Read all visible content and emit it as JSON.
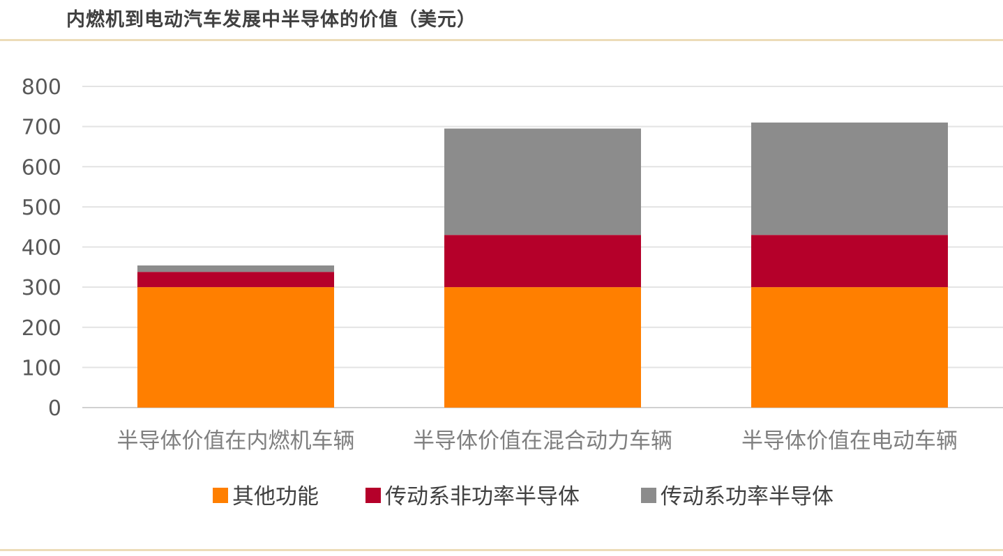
{
  "title": "内燃机到电动汽车发展中半导体的价值（美元）",
  "chart_data": {
    "type": "bar",
    "stacked": true,
    "categories": [
      "半导体价值在内燃机车辆",
      "半导体价值在混合动力车辆",
      "半导体价值在电动车辆"
    ],
    "series": [
      {
        "name": "其他功能",
        "color": "#ff7f00",
        "values": [
          300,
          300,
          300
        ]
      },
      {
        "name": "传动系非功率半导体",
        "color": "#b5002a",
        "values": [
          38,
          130,
          130
        ]
      },
      {
        "name": "传动系功率半导体",
        "color": "#8c8c8c",
        "values": [
          16,
          265,
          280
        ]
      }
    ],
    "ylim": [
      0,
      800
    ],
    "yticks": [
      0,
      100,
      200,
      300,
      400,
      500,
      600,
      700,
      800
    ],
    "grid": true,
    "legend_position": "bottom"
  }
}
